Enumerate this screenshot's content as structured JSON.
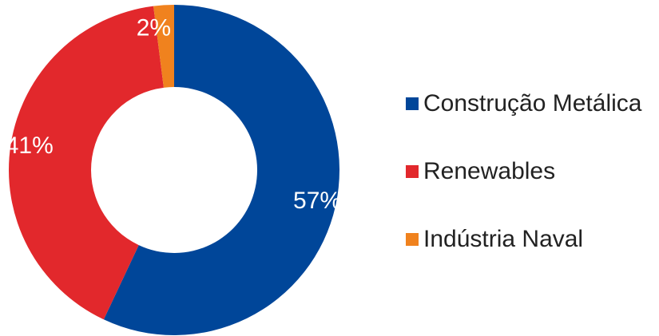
{
  "chart_data": {
    "type": "pie",
    "donut": true,
    "title": "",
    "legend_position": "right",
    "slices": [
      {
        "label": "Construção Metálica",
        "value": 57,
        "value_label": "57%",
        "color": "#004699"
      },
      {
        "label": "Renewables",
        "value": 41,
        "value_label": "41%",
        "color": "#e2282c"
      },
      {
        "label": "Indústria Naval",
        "value": 2,
        "value_label": "2%",
        "color": "#f0821e"
      }
    ]
  }
}
